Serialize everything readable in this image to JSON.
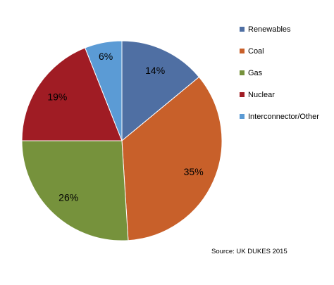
{
  "chart_data": {
    "type": "pie",
    "start": "12 o'clock",
    "direction": "clockwise",
    "slices": [
      {
        "label": "Renewables",
        "value": 14,
        "display": "14%",
        "color": "#4f6fa3"
      },
      {
        "label": "Coal",
        "value": 35,
        "display": "35%",
        "color": "#c8602a"
      },
      {
        "label": "Gas",
        "value": 26,
        "display": "26%",
        "color": "#76923c"
      },
      {
        "label": "Nuclear",
        "value": 19,
        "display": "19%",
        "color": "#a01c24"
      },
      {
        "label": "Interconnector/Other",
        "value": 6,
        "display": "6%",
        "color": "#5b9bd5"
      }
    ],
    "legend_position": "right",
    "source_note": "Source: UK DUKES 2015"
  }
}
